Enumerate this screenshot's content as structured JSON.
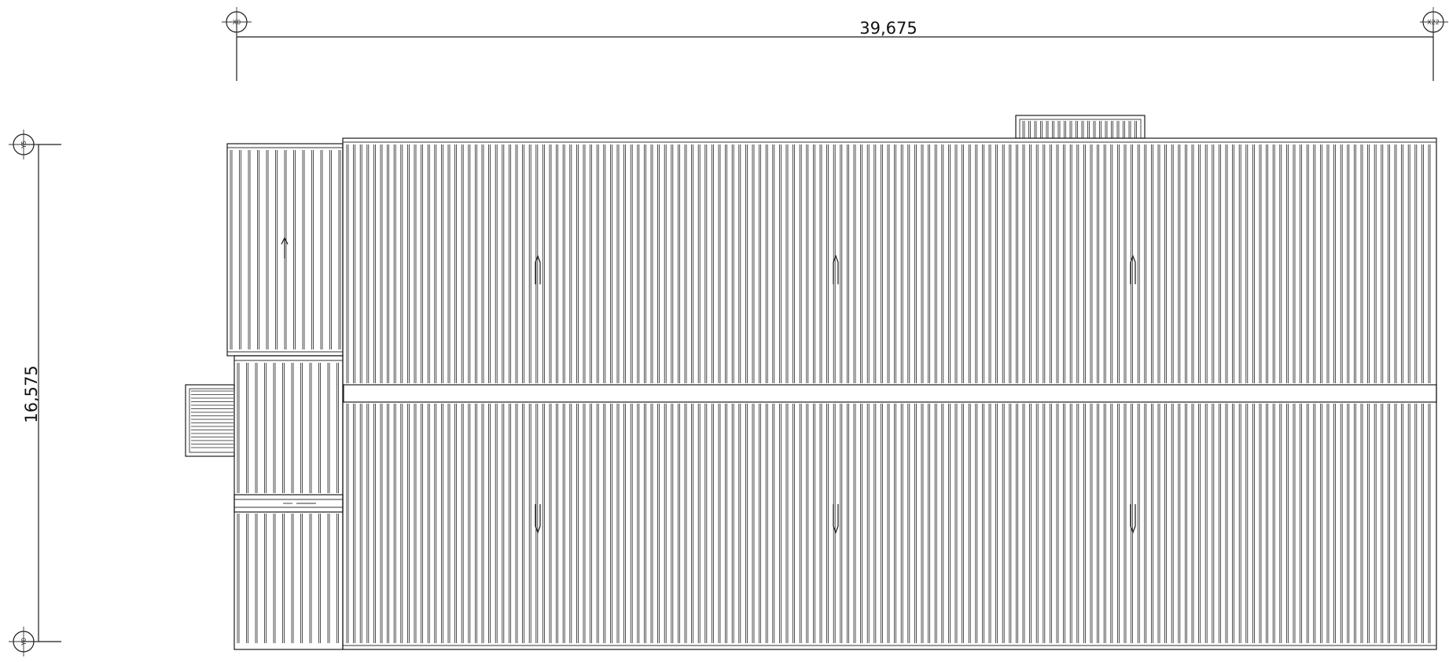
{
  "dimensions": {
    "horizontal": "39,675",
    "vertical": "16,575"
  },
  "grid_markers": {
    "top_left": "X0",
    "top_right": "X22",
    "left_top": "Y5",
    "left_bottom": "Y0"
  },
  "colors": {
    "line": "#1a1a1a",
    "background": "#ffffff"
  }
}
